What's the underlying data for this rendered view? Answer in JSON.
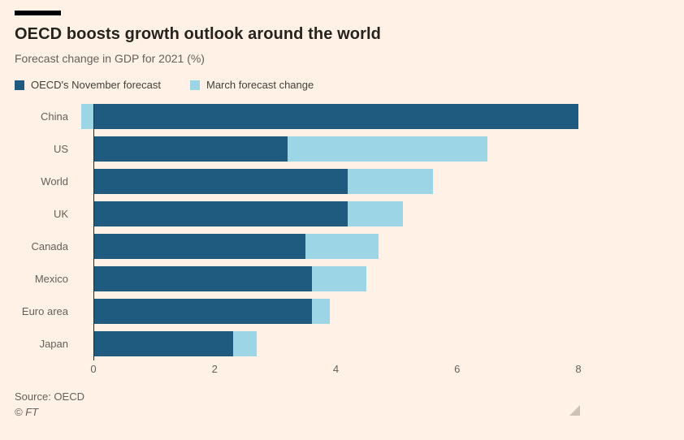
{
  "page": {
    "title": "OECD boosts growth outlook around the world",
    "subtitle": "Forecast change in GDP for 2021 (%)",
    "source": "Source: OECD",
    "credit": "© FT"
  },
  "colors": {
    "background": "#fff1e5",
    "dark_blue": "#1f5a7f",
    "light_blue": "#9cd5e6",
    "muted_text": "#66605c",
    "title_text": "#26231f",
    "baseline": "#262a33"
  },
  "legend": [
    {
      "label": "OECD's November forecast",
      "color": "#1f5a7f"
    },
    {
      "label": "March forecast change",
      "color": "#9cd5e6"
    }
  ],
  "chart_data": {
    "type": "bar",
    "orientation": "horizontal",
    "stacked": true,
    "title": "OECD boosts growth outlook around the world",
    "subtitle": "Forecast change in GDP for 2021 (%)",
    "categories": [
      "China",
      "US",
      "World",
      "UK",
      "Canada",
      "Mexico",
      "Euro area",
      "Japan"
    ],
    "series": [
      {
        "name": "OECD's November forecast",
        "values": [
          8.0,
          3.2,
          4.2,
          4.2,
          3.5,
          3.6,
          3.6,
          2.3
        ]
      },
      {
        "name": "March forecast change",
        "values": [
          -0.2,
          3.3,
          1.4,
          0.9,
          1.2,
          0.9,
          0.3,
          0.4
        ]
      }
    ],
    "march_forecast_totals": [
      7.8,
      6.5,
      5.6,
      5.1,
      4.7,
      4.5,
      3.9,
      2.7
    ],
    "x_ticks": [
      0,
      2,
      4,
      6,
      8
    ],
    "xlim": [
      -0.35,
      8.04
    ],
    "grid": false,
    "legend_position": "top",
    "source": "Source: OECD"
  }
}
